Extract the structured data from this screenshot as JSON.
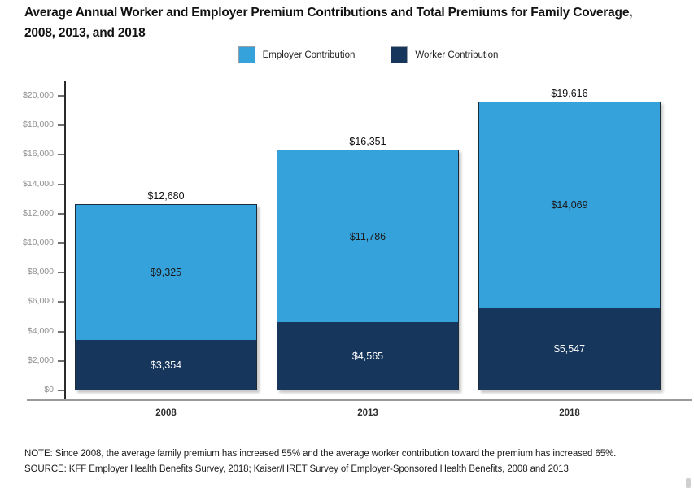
{
  "chart_data": {
    "type": "bar",
    "stacked": true,
    "title": "Average Annual Worker and Employer Premium Contributions and Total Premiums for Family Coverage, 2008, 2013, and 2018",
    "categories": [
      "2008",
      "2013",
      "2018"
    ],
    "series": [
      {
        "name": "Worker Contribution",
        "color": "#17365C",
        "label_color": "#ffffff",
        "values": [
          3354,
          4565,
          5547
        ],
        "labels": [
          "$3,354",
          "$4,565",
          "$5,547"
        ]
      },
      {
        "name": "Employer Contribution",
        "color": "#36A2DB",
        "label_color": "#1a1a1a",
        "values": [
          9325,
          11786,
          14069
        ],
        "labels": [
          "$9,325",
          "$11,786",
          "$14,069"
        ]
      }
    ],
    "totals": [
      12680,
      16351,
      19616
    ],
    "total_labels": [
      "$12,680",
      "$16,351",
      "$19,616"
    ],
    "xlabel": "",
    "ylabel": "",
    "ylim": [
      0,
      20000
    ],
    "ytick_step": 2000,
    "ytick_labels": [
      "$0",
      "$2,000",
      "$4,000",
      "$6,000",
      "$8,000",
      "$10,000",
      "$12,000",
      "$14,000",
      "$16,000",
      "$18,000",
      "$20,000"
    ],
    "grid": false,
    "legend_position": "top"
  },
  "legend": {
    "items": [
      {
        "label": "Employer Contribution",
        "color": "#36A2DB"
      },
      {
        "label": "Worker Contribution",
        "color": "#17365C"
      }
    ]
  },
  "footnotes": {
    "note": "NOTE: Since 2008, the average family premium has increased 55% and the average worker contribution toward the premium has increased 65%.",
    "source": "SOURCE: KFF Employer Health Benefits Survey, 2018; Kaiser/HRET Survey of Employer-Sponsored Health Benefits, 2008 and 2013"
  }
}
